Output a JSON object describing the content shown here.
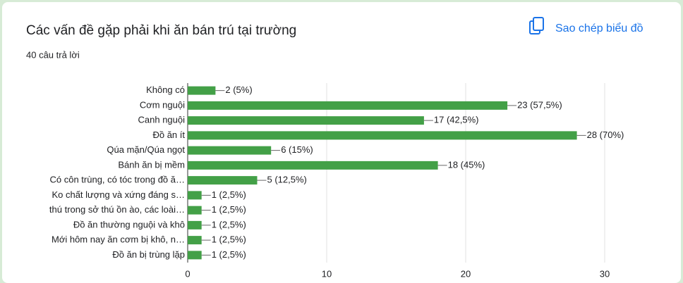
{
  "chart_data": {
    "type": "bar",
    "orientation": "horizontal",
    "title": "Các vấn đề gặp phải khi ăn bán trú tại trường",
    "subtitle": "40 câu trả lời",
    "categories": [
      "Không có",
      "Cơm nguội",
      "Canh nguội",
      "Đồ ăn ít",
      "Qúa mặn/Qúa ngọt",
      "Bánh ăn bị mềm",
      "Có côn trùng, có tóc trong đồ ă…",
      "Ko chất lượng và xứng đáng s…",
      "thú trong sở thú ồn ào, các loài…",
      "Đồ ăn thường nguội và khô",
      "Mới hôm nay ăn cơm bị khô, n…",
      "Đồ ăn bị trùng lặp"
    ],
    "values": [
      2,
      23,
      17,
      28,
      6,
      18,
      5,
      1,
      1,
      1,
      1,
      1
    ],
    "value_labels": [
      "2 (5%)",
      "23 (57,5%)",
      "17 (42,5%)",
      "28 (70%)",
      "6 (15%)",
      "18 (45%)",
      "5 (12,5%)",
      "1 (2,5%)",
      "1 (2,5%)",
      "1 (2,5%)",
      "1 (2,5%)",
      "1 (2,5%)"
    ],
    "color": "#43a047",
    "xlim": [
      0,
      30
    ],
    "xticks": [
      0,
      10,
      20,
      30
    ],
    "grid": true
  },
  "ui": {
    "copy_button": "Sao chép biểu đồ"
  }
}
